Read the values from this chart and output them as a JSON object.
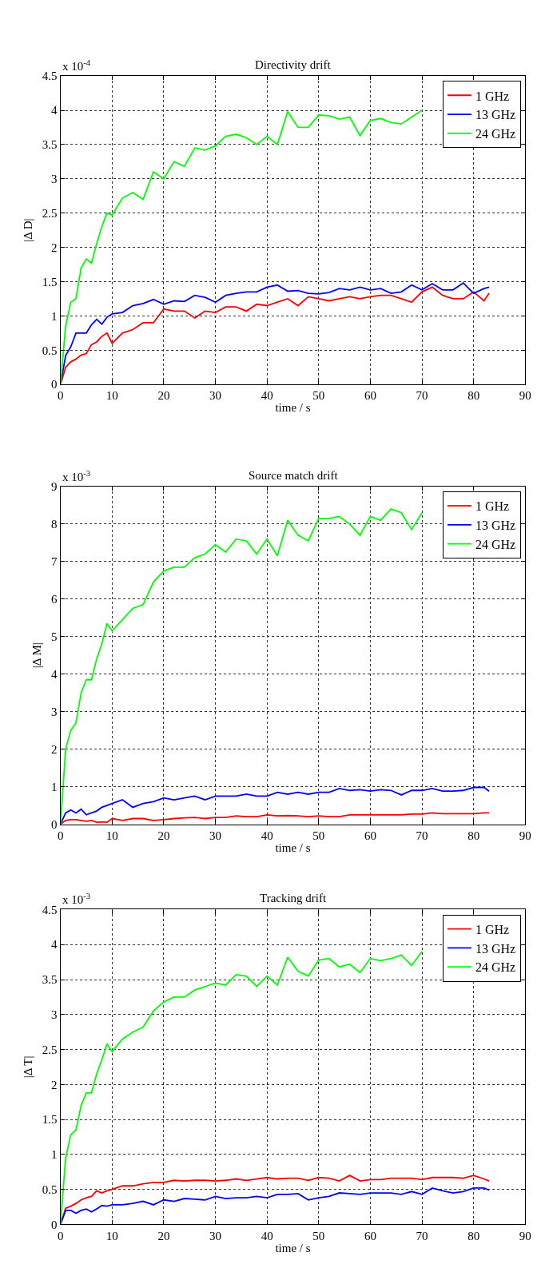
{
  "chart_data": [
    {
      "type": "line",
      "title": "Directivity drift",
      "xlabel": "time / s",
      "ylabel": "|Δ D|",
      "annotations": [
        "x 10$^{-4}$"
      ],
      "x": [
        0,
        1,
        2,
        3,
        4,
        5,
        6,
        7,
        8,
        9,
        10,
        12,
        14,
        16,
        18,
        20,
        22,
        24,
        26,
        28,
        30,
        32,
        34,
        36,
        38,
        40,
        42,
        44,
        46,
        48,
        50,
        52,
        54,
        56,
        58,
        60,
        62,
        64,
        66,
        68,
        70,
        72,
        74,
        76,
        78,
        80,
        82,
        83
      ],
      "xlim": [
        0,
        90
      ],
      "xticks": [
        0,
        10,
        20,
        30,
        40,
        50,
        60,
        70,
        80,
        90
      ],
      "ylim": [
        0,
        4.5
      ],
      "yticks": [
        0,
        0.5,
        1,
        1.5,
        2,
        2.5,
        3,
        3.5,
        4,
        4.5
      ],
      "grid": true,
      "legend": "top right",
      "marker": "none",
      "line_style": "solid",
      "series": [
        {
          "name": "1 GHz",
          "color": "#ff0000",
          "values": [
            0,
            0.25,
            0.33,
            0.37,
            0.43,
            0.45,
            0.58,
            0.62,
            0.7,
            0.75,
            0.6,
            0.75,
            0.8,
            0.9,
            0.9,
            1.1,
            1.07,
            1.07,
            0.97,
            1.07,
            1.05,
            1.13,
            1.13,
            1.07,
            1.17,
            1.15,
            1.2,
            1.25,
            1.15,
            1.28,
            1.25,
            1.22,
            1.25,
            1.28,
            1.25,
            1.28,
            1.3,
            1.3,
            1.25,
            1.2,
            1.35,
            1.42,
            1.3,
            1.25,
            1.25,
            1.35,
            1.22,
            1.33
          ]
        },
        {
          "name": "13 GHz",
          "color": "#0000ff",
          "values": [
            0,
            0.42,
            0.55,
            0.75,
            0.75,
            0.75,
            0.87,
            0.95,
            0.88,
            0.98,
            1.03,
            1.05,
            1.15,
            1.18,
            1.24,
            1.17,
            1.22,
            1.21,
            1.3,
            1.27,
            1.2,
            1.3,
            1.33,
            1.35,
            1.35,
            1.42,
            1.45,
            1.36,
            1.37,
            1.33,
            1.32,
            1.34,
            1.4,
            1.38,
            1.42,
            1.38,
            1.4,
            1.33,
            1.35,
            1.45,
            1.38,
            1.47,
            1.38,
            1.38,
            1.48,
            1.33,
            1.4,
            1.42
          ]
        },
        {
          "name": "24 GHz",
          "color": "#00ff00",
          "values": [
            0,
            0.85,
            1.2,
            1.25,
            1.7,
            1.83,
            1.77,
            2.05,
            2.3,
            2.5,
            2.47,
            2.72,
            2.8,
            2.7,
            3.1,
            3.0,
            3.25,
            3.18,
            3.45,
            3.42,
            3.48,
            3.62,
            3.65,
            3.6,
            3.5,
            3.62,
            3.5,
            3.98,
            3.75,
            3.75,
            3.93,
            3.92,
            3.87,
            3.9,
            3.63,
            3.85,
            3.88,
            3.82,
            3.8,
            3.9,
            4.0,
            null,
            null,
            null,
            null,
            null,
            null,
            null
          ]
        }
      ]
    },
    {
      "type": "line",
      "title": "Source match drift",
      "xlabel": "time / s",
      "ylabel": "|Δ M|",
      "annotations": [
        "x 10$^{-3}$"
      ],
      "x": [
        0,
        1,
        2,
        3,
        4,
        5,
        6,
        7,
        8,
        9,
        10,
        12,
        14,
        16,
        18,
        20,
        22,
        24,
        26,
        28,
        30,
        32,
        34,
        36,
        38,
        40,
        42,
        44,
        46,
        48,
        50,
        52,
        54,
        56,
        58,
        60,
        62,
        64,
        66,
        68,
        70,
        72,
        74,
        76,
        78,
        80,
        82,
        83
      ],
      "xlim": [
        0,
        90
      ],
      "xticks": [
        0,
        10,
        20,
        30,
        40,
        50,
        60,
        70,
        80,
        90
      ],
      "ylim": [
        0,
        9
      ],
      "yticks": [
        0,
        1,
        2,
        3,
        4,
        5,
        6,
        7,
        8,
        9
      ],
      "grid": true,
      "legend": "top right",
      "marker": "none",
      "line_style": "solid",
      "series": [
        {
          "name": "1 GHz",
          "color": "#ff0000",
          "values": [
            0,
            0.1,
            0.12,
            0.12,
            0.1,
            0.08,
            0.1,
            0.05,
            0.06,
            0.05,
            0.15,
            0.1,
            0.15,
            0.15,
            0.1,
            0.12,
            0.15,
            0.17,
            0.18,
            0.15,
            0.18,
            0.18,
            0.22,
            0.2,
            0.2,
            0.25,
            0.22,
            0.23,
            0.22,
            0.2,
            0.22,
            0.2,
            0.2,
            0.25,
            0.25,
            0.25,
            0.25,
            0.25,
            0.25,
            0.27,
            0.27,
            0.3,
            0.28,
            0.28,
            0.28,
            0.28,
            0.3,
            0.3
          ]
        },
        {
          "name": "13 GHz",
          "color": "#0000ff",
          "values": [
            0,
            0.3,
            0.38,
            0.3,
            0.4,
            0.25,
            0.3,
            0.35,
            0.45,
            0.5,
            0.55,
            0.65,
            0.45,
            0.55,
            0.6,
            0.7,
            0.65,
            0.7,
            0.75,
            0.65,
            0.75,
            0.75,
            0.75,
            0.8,
            0.75,
            0.75,
            0.85,
            0.8,
            0.85,
            0.8,
            0.85,
            0.85,
            0.95,
            0.9,
            0.92,
            0.88,
            0.92,
            0.9,
            0.78,
            0.9,
            0.9,
            0.95,
            0.88,
            0.88,
            0.9,
            0.98,
            0.98,
            0.88
          ]
        },
        {
          "name": "24 GHz",
          "color": "#00ff00",
          "values": [
            0,
            2.0,
            2.5,
            2.7,
            3.5,
            3.85,
            3.85,
            4.4,
            4.8,
            5.35,
            5.15,
            5.45,
            5.75,
            5.85,
            6.45,
            6.75,
            6.85,
            6.85,
            7.1,
            7.2,
            7.45,
            7.25,
            7.6,
            7.55,
            7.2,
            7.6,
            7.15,
            8.1,
            7.7,
            7.55,
            8.15,
            8.15,
            8.2,
            8.0,
            7.7,
            8.2,
            8.1,
            8.4,
            8.3,
            7.85,
            8.3,
            null,
            null,
            null,
            null,
            null,
            null,
            null
          ]
        }
      ]
    },
    {
      "type": "line",
      "title": "Tracking drift",
      "xlabel": "time / s",
      "ylabel": "|Δ T|",
      "annotations": [
        "x 10$^{-3}$"
      ],
      "x": [
        0,
        1,
        2,
        3,
        4,
        5,
        6,
        7,
        8,
        9,
        10,
        12,
        14,
        16,
        18,
        20,
        22,
        24,
        26,
        28,
        30,
        32,
        34,
        36,
        38,
        40,
        42,
        44,
        46,
        48,
        50,
        52,
        54,
        56,
        58,
        60,
        62,
        64,
        66,
        68,
        70,
        72,
        74,
        76,
        78,
        80,
        82,
        83
      ],
      "xlim": [
        0,
        90
      ],
      "xticks": [
        0,
        10,
        20,
        30,
        40,
        50,
        60,
        70,
        80,
        90
      ],
      "ylim": [
        0,
        4.5
      ],
      "yticks": [
        0,
        0.5,
        1,
        1.5,
        2,
        2.5,
        3,
        3.5,
        4,
        4.5
      ],
      "grid": true,
      "legend": "top right",
      "marker": "none",
      "line_style": "solid",
      "series": [
        {
          "name": "1 GHz",
          "color": "#ff0000",
          "values": [
            0,
            0.23,
            0.26,
            0.3,
            0.35,
            0.38,
            0.4,
            0.48,
            0.45,
            0.48,
            0.5,
            0.55,
            0.55,
            0.58,
            0.6,
            0.6,
            0.63,
            0.62,
            0.63,
            0.63,
            0.62,
            0.63,
            0.65,
            0.63,
            0.65,
            0.67,
            0.65,
            0.66,
            0.66,
            0.63,
            0.67,
            0.66,
            0.62,
            0.7,
            0.62,
            0.64,
            0.64,
            0.66,
            0.66,
            0.66,
            0.64,
            0.67,
            0.67,
            0.67,
            0.66,
            0.7,
            0.65,
            0.62
          ]
        },
        {
          "name": "13 GHz",
          "color": "#0000ff",
          "values": [
            0,
            0.2,
            0.2,
            0.16,
            0.2,
            0.22,
            0.18,
            0.22,
            0.27,
            0.26,
            0.28,
            0.28,
            0.3,
            0.33,
            0.28,
            0.35,
            0.33,
            0.37,
            0.36,
            0.35,
            0.4,
            0.37,
            0.38,
            0.38,
            0.4,
            0.38,
            0.43,
            0.43,
            0.44,
            0.35,
            0.38,
            0.4,
            0.45,
            0.44,
            0.43,
            0.45,
            0.45,
            0.45,
            0.43,
            0.47,
            0.43,
            0.52,
            0.48,
            0.45,
            0.47,
            0.52,
            0.52,
            0.49
          ]
        },
        {
          "name": "24 GHz",
          "color": "#00ff00",
          "values": [
            0,
            0.95,
            1.28,
            1.35,
            1.7,
            1.88,
            1.88,
            2.15,
            2.35,
            2.58,
            2.47,
            2.65,
            2.75,
            2.82,
            3.05,
            3.18,
            3.25,
            3.25,
            3.35,
            3.4,
            3.45,
            3.42,
            3.57,
            3.55,
            3.4,
            3.55,
            3.42,
            3.82,
            3.62,
            3.55,
            3.78,
            3.8,
            3.68,
            3.72,
            3.6,
            3.8,
            3.77,
            3.8,
            3.85,
            3.7,
            3.9,
            null,
            null,
            null,
            null,
            null,
            null,
            null
          ]
        }
      ]
    }
  ]
}
